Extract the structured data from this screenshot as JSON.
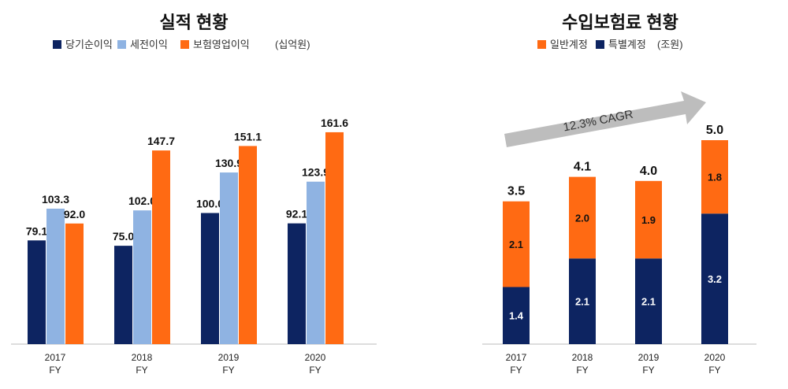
{
  "chart_data": [
    {
      "type": "bar",
      "title": "실적 현황",
      "unit": "(십억원)",
      "categories": [
        [
          "2017",
          "FY"
        ],
        [
          "2018",
          "FY"
        ],
        [
          "2019",
          "FY"
        ],
        [
          "2020",
          "FY"
        ]
      ],
      "series": [
        {
          "name": "당기순이익",
          "color": "#0d2461",
          "values": [
            79.1,
            75.0,
            100.0,
            92.1
          ]
        },
        {
          "name": "세전이익",
          "color": "#8fb3e2",
          "values": [
            103.3,
            102.0,
            130.9,
            123.9
          ]
        },
        {
          "name": "보험영업이익",
          "color": "#ff6a13",
          "values": [
            92.0,
            147.7,
            151.1,
            161.6
          ]
        }
      ],
      "legend": "top",
      "grid": false
    },
    {
      "type": "bar",
      "stacked": true,
      "title": "수입보험료 현황",
      "unit": "(조원)",
      "categories": [
        [
          "2017",
          "FY"
        ],
        [
          "2018",
          "FY"
        ],
        [
          "2019",
          "FY"
        ],
        [
          "2020",
          "FY"
        ]
      ],
      "series": [
        {
          "name": "일반계정",
          "color": "#ff6a13",
          "values": [
            2.1,
            2.0,
            1.9,
            1.8
          ]
        },
        {
          "name": "특별계정",
          "color": "#0d2461",
          "values": [
            1.4,
            2.1,
            2.1,
            3.2
          ]
        }
      ],
      "totals": [
        3.5,
        4.1,
        4.0,
        5.0
      ],
      "annotation": "12.3% CAGR",
      "legend": "top",
      "grid": false
    }
  ]
}
